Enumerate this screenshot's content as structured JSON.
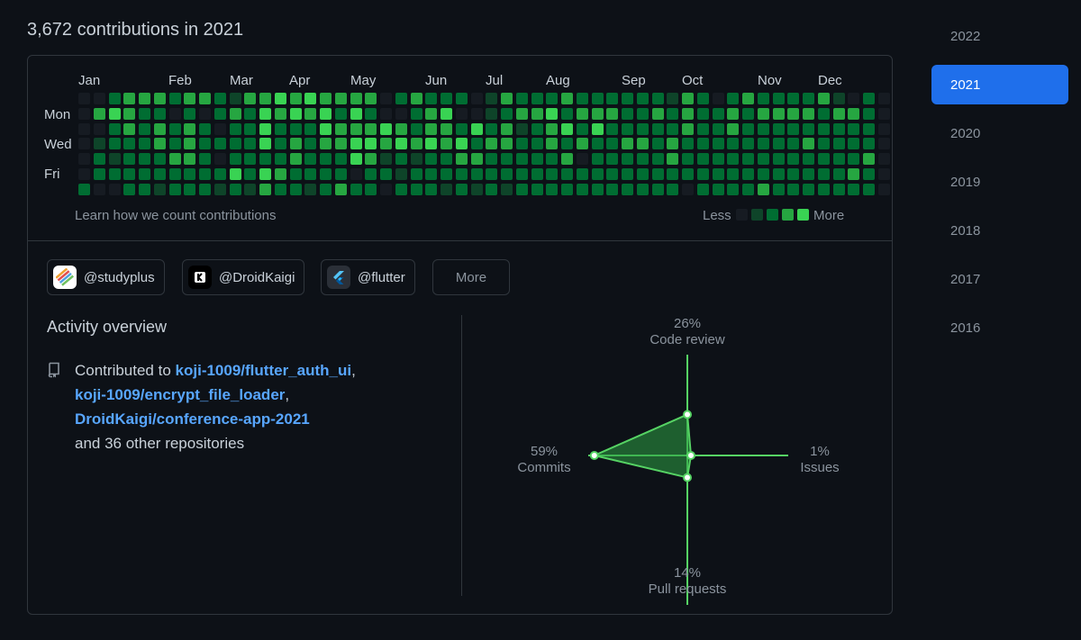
{
  "header": {
    "title": "3,672 contributions in 2021"
  },
  "graph": {
    "months": [
      "Jan",
      "Feb",
      "Mar",
      "Apr",
      "May",
      "Jun",
      "Jul",
      "Aug",
      "Sep",
      "Oct",
      "Nov",
      "Dec"
    ],
    "days": [
      "Mon",
      "Wed",
      "Fri"
    ],
    "learn_link": "Learn how we count contributions",
    "legend_less": "Less",
    "legend_more": "More",
    "colors": [
      "#161b22",
      "#0e4429",
      "#006d32",
      "#26a641",
      "#39d353"
    ],
    "weeks": [
      "0000002",
      "0301220",
      "2422120",
      "3332222",
      "3222222",
      "3233221",
      "2022322",
      "3233322",
      "3022222",
      "2202021",
      "1322242",
      "3222221",
      "3444243",
      "4322232",
      "3423322",
      "4322221",
      "3443222",
      "3233223",
      "3434402",
      "3234322",
      "0043120",
      "2034212",
      "3223122",
      "2334222",
      "2433221",
      "2024322",
      "0042321",
      "1123222",
      "3233221",
      "2312222",
      "2322222",
      "2433222",
      "3242322",
      "2323022",
      "2342222",
      "2322222",
      "2223222",
      "2223222",
      "2322222",
      "1223322",
      "3332220",
      "2222222",
      "0222222",
      "2332222",
      "3222222",
      "2322223",
      "2322222",
      "2322222",
      "2323222",
      "3222222",
      "1322222",
      "0322232",
      "2222322",
      "0000000"
    ]
  },
  "orgs": [
    {
      "name": "@studyplus",
      "logo_icon": "studyplus-logo-icon"
    },
    {
      "name": "@DroidKaigi",
      "logo_icon": "droidkaigi-logo-icon"
    },
    {
      "name": "@flutter",
      "logo_icon": "flutter-logo-icon"
    }
  ],
  "more_button": "More",
  "activity": {
    "title": "Activity overview",
    "contributed_to": "Contributed to",
    "repos": [
      "koji-1009/flutter_auth_ui",
      "koji-1009/encrypt_file_loader",
      "DroidKaigi/conference-app-2021"
    ],
    "sep1": ",",
    "sep2": ",",
    "others": "and 36 other repositories",
    "repo_icon": "repo-icon"
  },
  "radar": {
    "accent": "#56d364",
    "fill": "#2ea043",
    "axes": [
      {
        "key": "code_review",
        "pct": "26%",
        "label": "Code review",
        "value": 26
      },
      {
        "key": "issues",
        "pct": "1%",
        "label": "Issues",
        "value": 1
      },
      {
        "key": "pull_requests",
        "pct": "14%",
        "label": "Pull requests",
        "value": 14
      },
      {
        "key": "commits",
        "pct": "59%",
        "label": "Commits",
        "value": 59
      }
    ]
  },
  "years": {
    "list": [
      "2022",
      "2021",
      "2020",
      "2019",
      "2018",
      "2017",
      "2016"
    ],
    "selected": "2021",
    "accent": "#1f6feb"
  }
}
